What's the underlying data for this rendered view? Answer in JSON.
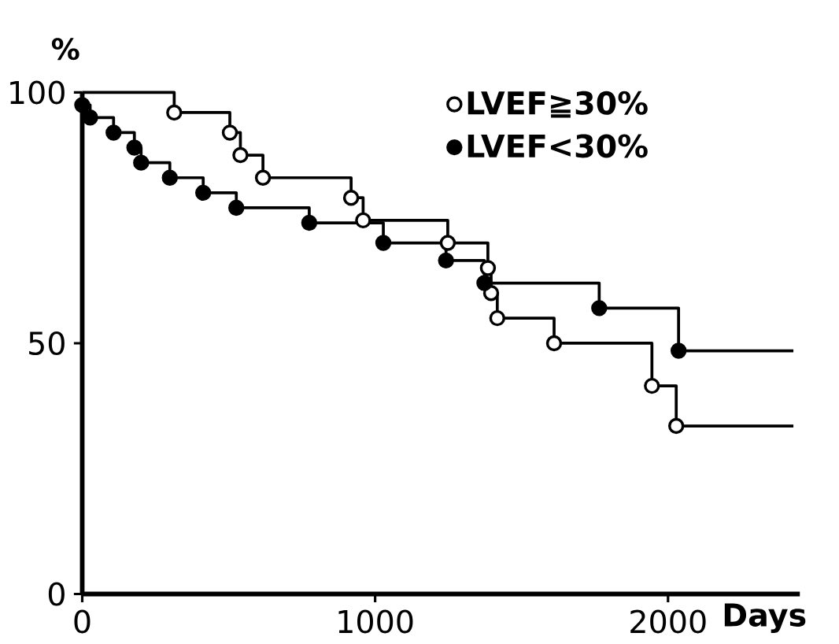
{
  "chart_data": {
    "type": "step",
    "xlabel": "Days",
    "ylabel": "%",
    "xlim": [
      0,
      2450
    ],
    "ylim": [
      0,
      100
    ],
    "xticks": [
      0,
      1000,
      2000
    ],
    "yticks": [
      0,
      50,
      100
    ],
    "legend": "top right",
    "marker": "circle",
    "grid": false,
    "series": [
      {
        "name": "LVEF≧30%",
        "color": "#000000",
        "x": [
          0,
          314,
          504,
          540,
          617,
          918,
          959,
          1248,
          1385,
          1396,
          1417,
          1611,
          1945,
          2028,
          2428
        ],
        "values": [
          100,
          96,
          92,
          87.5,
          83,
          79,
          74.5,
          70,
          65,
          60,
          55,
          50,
          41.5,
          33.5,
          33.5
        ]
      },
      {
        "name": "LVEF<30%",
        "color": "#000000",
        "x": [
          0,
          0,
          27,
          107,
          178,
          201,
          299,
          413,
          526,
          775,
          1028,
          1242,
          1373,
          1765,
          2036,
          2428
        ],
        "values": [
          100,
          97.5,
          95,
          92,
          89,
          86,
          83,
          80,
          77,
          74,
          70,
          66.5,
          62,
          57,
          48.5,
          48.5
        ]
      }
    ]
  }
}
